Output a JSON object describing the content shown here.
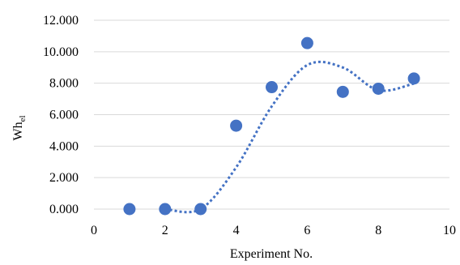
{
  "chart_data": {
    "type": "scatter",
    "xlabel": "Experiment No.",
    "ylabel_main": "Wh",
    "ylabel_sub": "el",
    "xlim": [
      0,
      10
    ],
    "ylim": [
      0,
      12
    ],
    "x_ticks": [
      0,
      2,
      4,
      6,
      8,
      10
    ],
    "y_ticks": [
      0,
      2,
      4,
      6,
      8,
      10,
      12
    ],
    "y_tick_labels": [
      "0.000",
      "2.000",
      "4.000",
      "6.000",
      "8.000",
      "10.000",
      "12.000"
    ],
    "grid": true,
    "series": [
      {
        "x": [
          1,
          2,
          3,
          4,
          5,
          6,
          7,
          8,
          9
        ],
        "y": [
          0.0,
          0.0,
          0.0,
          5.3,
          7.75,
          10.55,
          7.45,
          7.65,
          8.3
        ]
      }
    ],
    "trendline": {
      "type": "moving-average",
      "period": 2,
      "style": "dotted"
    },
    "colors": {
      "series": "#4472c4",
      "grid": "#d9d9d9"
    }
  }
}
